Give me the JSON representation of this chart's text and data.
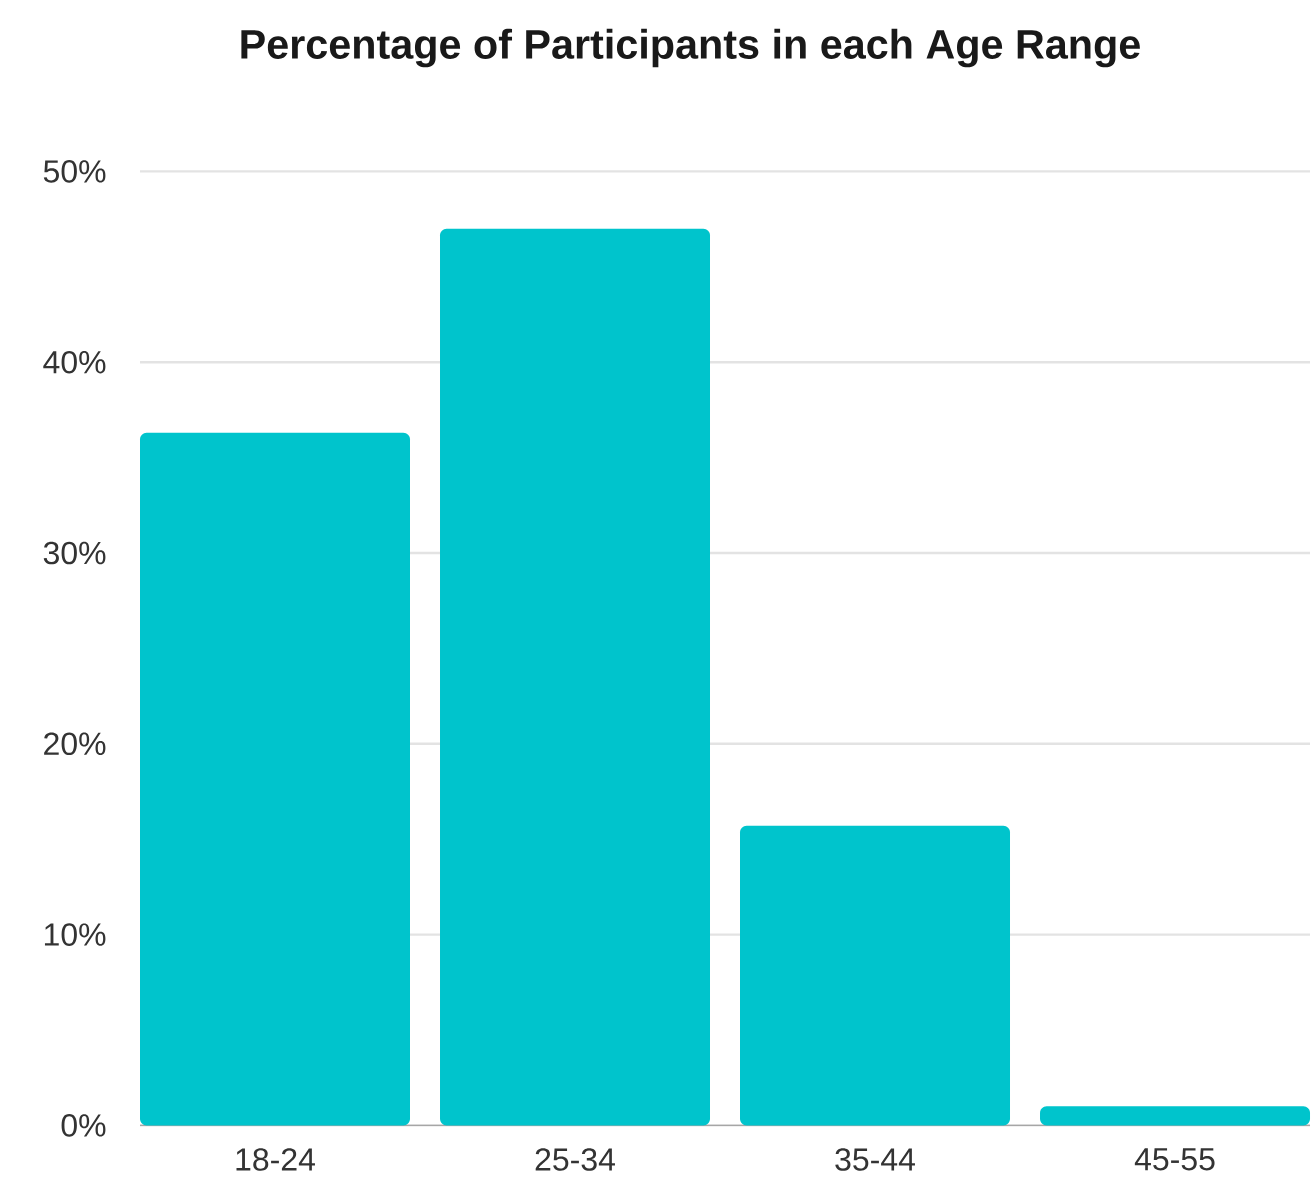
{
  "chart_data": {
    "type": "bar",
    "title": "Percentage of Participants in each Age Range",
    "categories": [
      "18-24",
      "25-34",
      "35-44",
      "45-55"
    ],
    "values": [
      36.3,
      47.0,
      15.7,
      1.0
    ],
    "color": "#00c4cc",
    "ylim": [
      0,
      50
    ],
    "yticks": [
      {
        "value": 0,
        "label": "0%"
      },
      {
        "value": 10,
        "label": "10%"
      },
      {
        "value": 20,
        "label": "20%"
      },
      {
        "value": 30,
        "label": "30%"
      },
      {
        "value": 40,
        "label": "40%"
      },
      {
        "value": 50,
        "label": "50%"
      }
    ],
    "grid": "y"
  }
}
